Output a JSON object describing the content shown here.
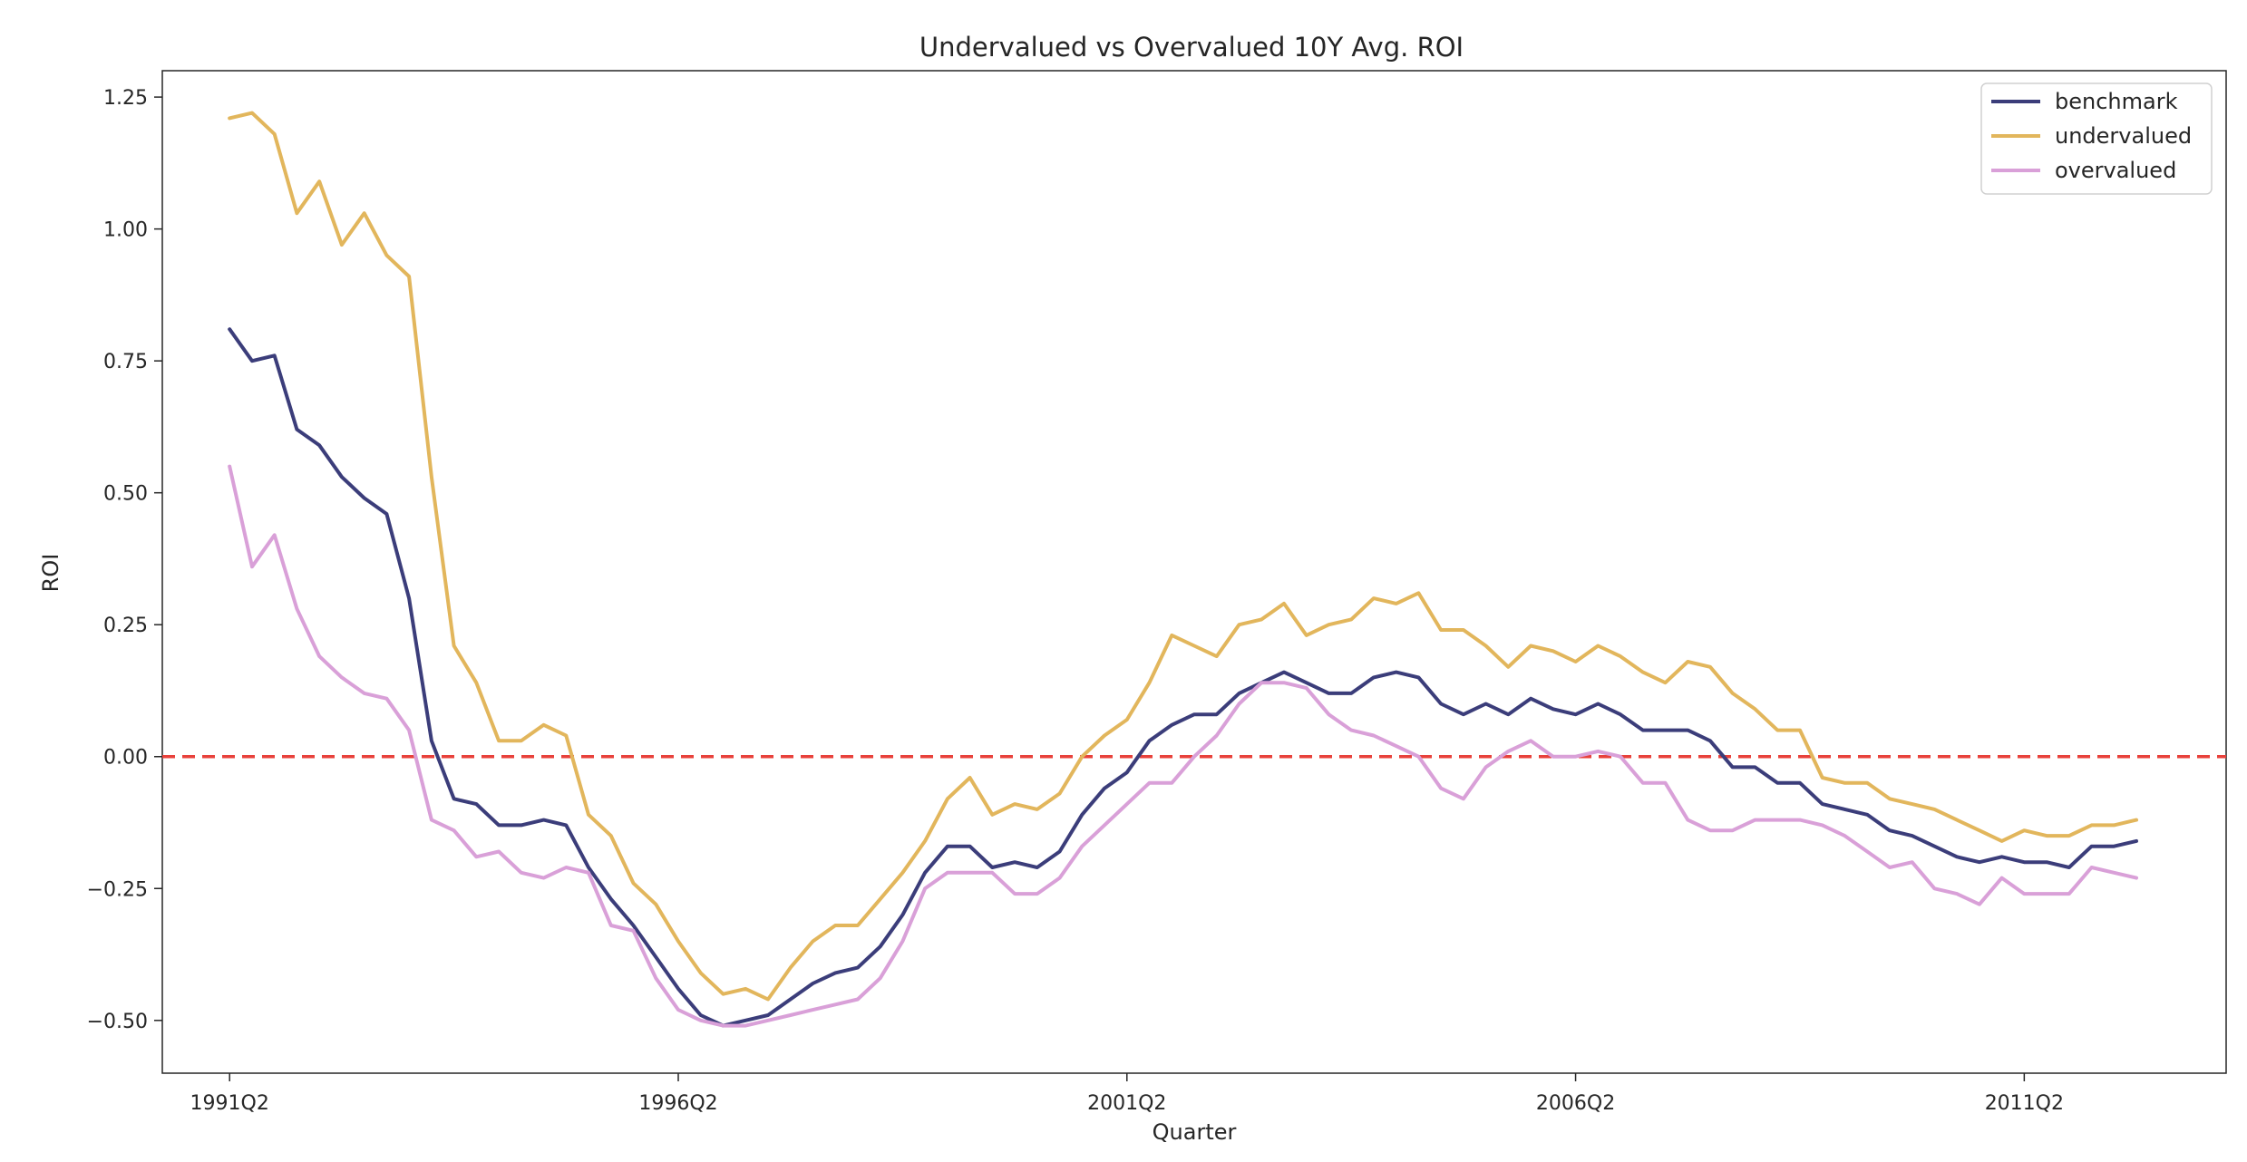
{
  "chart_data": {
    "type": "line",
    "title": "Undervalued vs Overvalued 10Y Avg. ROI",
    "xlabel": "Quarter",
    "ylabel": "ROI",
    "x_start": "1991Q2",
    "x_end": "2012Q4",
    "xlim": [
      "1990Q3",
      "2013Q3"
    ],
    "ylim": [
      -0.6,
      1.3
    ],
    "xticks": [
      "1991Q2",
      "1996Q2",
      "2001Q2",
      "2006Q2",
      "2011Q2"
    ],
    "yticks": [
      -0.5,
      -0.25,
      0.0,
      0.25,
      0.5,
      0.75,
      1.0,
      1.25
    ],
    "ytick_labels": [
      "−0.50",
      "−0.25",
      "0.00",
      "0.25",
      "0.50",
      "0.75",
      "1.00",
      "1.25"
    ],
    "grid": false,
    "legend_position": "top-right",
    "reference_line": {
      "y": 0.0,
      "style": "dashed",
      "color": "#e8413b"
    },
    "series": [
      {
        "name": "benchmark",
        "color": "#3b3d7a",
        "values": [
          0.81,
          0.75,
          0.76,
          0.62,
          0.59,
          0.53,
          0.49,
          0.46,
          0.3,
          0.03,
          -0.08,
          -0.09,
          -0.13,
          -0.13,
          -0.12,
          -0.13,
          -0.21,
          -0.27,
          -0.32,
          -0.38,
          -0.44,
          -0.49,
          -0.51,
          -0.5,
          -0.49,
          -0.46,
          -0.43,
          -0.41,
          -0.4,
          -0.36,
          -0.3,
          -0.22,
          -0.17,
          -0.17,
          -0.21,
          -0.2,
          -0.21,
          -0.18,
          -0.11,
          -0.06,
          -0.03,
          0.03,
          0.06,
          0.08,
          0.08,
          0.12,
          0.14,
          0.16,
          0.14,
          0.12,
          0.12,
          0.15,
          0.16,
          0.15,
          0.1,
          0.08,
          0.1,
          0.08,
          0.11,
          0.09,
          0.08,
          0.1,
          0.08,
          0.05,
          0.05,
          0.05,
          0.03,
          -0.02,
          -0.02,
          -0.05,
          -0.05,
          -0.09,
          -0.1,
          -0.11,
          -0.14,
          -0.15,
          -0.17,
          -0.19,
          -0.2,
          -0.19,
          -0.2,
          -0.2,
          -0.21,
          -0.17,
          -0.17,
          -0.16
        ]
      },
      {
        "name": "undervalued",
        "color": "#e2b65c",
        "values": [
          1.21,
          1.22,
          1.18,
          1.03,
          1.09,
          0.97,
          1.03,
          0.95,
          0.91,
          0.53,
          0.21,
          0.14,
          0.03,
          0.03,
          0.06,
          0.04,
          -0.11,
          -0.15,
          -0.24,
          -0.28,
          -0.35,
          -0.41,
          -0.45,
          -0.44,
          -0.46,
          -0.4,
          -0.35,
          -0.32,
          -0.32,
          -0.27,
          -0.22,
          -0.16,
          -0.08,
          -0.04,
          -0.11,
          -0.09,
          -0.1,
          -0.07,
          0.0,
          0.04,
          0.07,
          0.14,
          0.23,
          0.21,
          0.19,
          0.25,
          0.26,
          0.29,
          0.23,
          0.25,
          0.26,
          0.3,
          0.29,
          0.31,
          0.24,
          0.24,
          0.21,
          0.17,
          0.21,
          0.2,
          0.18,
          0.21,
          0.19,
          0.16,
          0.14,
          0.18,
          0.17,
          0.12,
          0.09,
          0.05,
          0.05,
          -0.04,
          -0.05,
          -0.05,
          -0.08,
          -0.09,
          -0.1,
          -0.12,
          -0.14,
          -0.16,
          -0.14,
          -0.15,
          -0.15,
          -0.13,
          -0.13,
          -0.12
        ]
      },
      {
        "name": "overvalued",
        "color": "#d9a0d8",
        "values": [
          0.55,
          0.36,
          0.42,
          0.28,
          0.19,
          0.15,
          0.12,
          0.11,
          0.05,
          -0.12,
          -0.14,
          -0.19,
          -0.18,
          -0.22,
          -0.23,
          -0.21,
          -0.22,
          -0.32,
          -0.33,
          -0.42,
          -0.48,
          -0.5,
          -0.51,
          -0.51,
          -0.5,
          -0.49,
          -0.48,
          -0.47,
          -0.46,
          -0.42,
          -0.35,
          -0.25,
          -0.22,
          -0.22,
          -0.22,
          -0.26,
          -0.26,
          -0.23,
          -0.17,
          -0.13,
          -0.09,
          -0.05,
          -0.05,
          0.0,
          0.04,
          0.1,
          0.14,
          0.14,
          0.13,
          0.08,
          0.05,
          0.04,
          0.02,
          0.0,
          -0.06,
          -0.08,
          -0.02,
          0.01,
          0.03,
          0.0,
          0.0,
          0.01,
          0.0,
          -0.05,
          -0.05,
          -0.12,
          -0.14,
          -0.14,
          -0.12,
          -0.12,
          -0.12,
          -0.13,
          -0.15,
          -0.18,
          -0.21,
          -0.2,
          -0.25,
          -0.26,
          -0.28,
          -0.23,
          -0.26,
          -0.26,
          -0.26,
          -0.21,
          -0.22,
          -0.23
        ]
      }
    ]
  }
}
